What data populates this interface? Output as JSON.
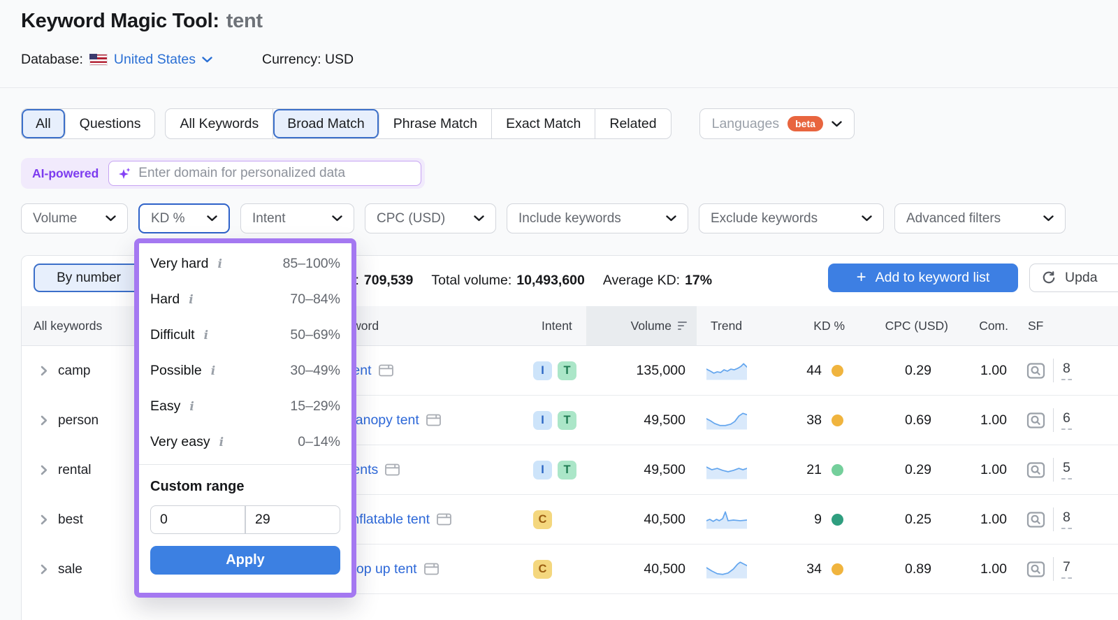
{
  "header": {
    "title": "Keyword Magic Tool:",
    "query": "tent",
    "database_label": "Database:",
    "database_value": "United States",
    "currency_label": "Currency:",
    "currency_value": "USD"
  },
  "tabs": {
    "group1": [
      {
        "label": "All",
        "active": true
      },
      {
        "label": "Questions",
        "active": false
      }
    ],
    "group2": [
      {
        "label": "All Keywords",
        "active": false
      },
      {
        "label": "Broad Match",
        "active": true
      },
      {
        "label": "Phrase Match",
        "active": false
      },
      {
        "label": "Exact Match",
        "active": false
      },
      {
        "label": "Related",
        "active": false
      }
    ],
    "languages": {
      "label": "Languages",
      "badge": "beta"
    }
  },
  "ai_bar": {
    "label": "AI-powered",
    "placeholder": "Enter domain for personalized data"
  },
  "filters": [
    {
      "label": "Volume",
      "active": false
    },
    {
      "label": "KD %",
      "active": true
    },
    {
      "label": "Intent",
      "active": false
    },
    {
      "label": "CPC (USD)",
      "active": false
    },
    {
      "label": "Include keywords",
      "active": false
    },
    {
      "label": "Exclude keywords",
      "active": false
    },
    {
      "label": "Advanced filters",
      "active": false
    }
  ],
  "kd_dropdown": {
    "items": [
      {
        "label": "Very hard",
        "range": "85–100%"
      },
      {
        "label": "Hard",
        "range": "70–84%"
      },
      {
        "label": "Difficult",
        "range": "50–69%"
      },
      {
        "label": "Possible",
        "range": "30–49%"
      },
      {
        "label": "Easy",
        "range": "15–29%"
      },
      {
        "label": "Very easy",
        "range": "0–14%"
      }
    ],
    "custom_range_label": "Custom range",
    "from_value": "0",
    "to_value": "29",
    "apply_label": "Apply"
  },
  "stats": {
    "keywords_label": "All keywords:",
    "keywords_value": "709,539",
    "volume_label": "Total volume:",
    "volume_value": "10,493,600",
    "kd_label": "Average KD:",
    "kd_value": "17%"
  },
  "toolbar": {
    "by_number_label": "By number",
    "add_label": "Add to keyword list",
    "update_label": "Upda"
  },
  "table": {
    "sidebar_header": "All keywords",
    "groups": [
      "camp",
      "person",
      "rental",
      "best",
      "sale"
    ],
    "columns": [
      "Keyword",
      "Intent",
      "Volume",
      "Trend",
      "KD %",
      "CPC (USD)",
      "Com.",
      "SF"
    ],
    "rows": [
      {
        "keyword": "tent",
        "intents": [
          "I",
          "T"
        ],
        "volume": "135,000",
        "kd": "44",
        "kd_level": "possible",
        "cpc": "0.29",
        "com": "1.00",
        "sf": "8",
        "trend": "0,12 6,15 11,18 16,16 21,17 26,13 31,15 36,12 41,13 46,11 51,8 55,4 60,9"
      },
      {
        "keyword": "canopy tent",
        "intents": [
          "I",
          "T"
        ],
        "volume": "49,500",
        "kd": "38",
        "kd_level": "possible",
        "cpc": "0.69",
        "com": "1.00",
        "sf": "6",
        "trend": "0,12 6,15 12,19 20,22 28,22 36,20 42,16 48,8 54,4 60,6"
      },
      {
        "keyword": "tents",
        "intents": [
          "I",
          "T"
        ],
        "volume": "49,500",
        "kd": "21",
        "kd_level": "easy",
        "cpc": "0.29",
        "com": "1.00",
        "sf": "5",
        "trend": "0,10 8,14 16,12 24,15 32,17 40,15 48,12 54,14 60,12"
      },
      {
        "keyword": "inflatable tent",
        "intents": [
          "C"
        ],
        "volume": "40,500",
        "kd": "9",
        "kd_level": "very_easy",
        "cpc": "0.25",
        "com": "1.00",
        "sf": "8",
        "trend": "0,16 5,14 10,17 15,14 19,16 24,13 28,3 32,16 40,15 50,16 60,15"
      },
      {
        "keyword": "pop up tent",
        "intents": [
          "C"
        ],
        "volume": "40,500",
        "kd": "34",
        "kd_level": "possible",
        "cpc": "0.89",
        "com": "1.00",
        "sf": "7",
        "trend": "0,12 8,17 16,21 24,22 32,20 40,14 46,7 50,4 54,6 60,9"
      }
    ],
    "kd_colors": {
      "possible": "#f0b43e",
      "easy": "#74cf9b",
      "very_easy": "#2f9e7f"
    },
    "intent_colors": {
      "I": {
        "bg": "#cde4fa",
        "fg": "#2b66c4"
      },
      "T": {
        "bg": "#abe6c8",
        "fg": "#1e7a52"
      },
      "C": {
        "bg": "#f4d77e",
        "fg": "#9c5f12"
      }
    }
  }
}
